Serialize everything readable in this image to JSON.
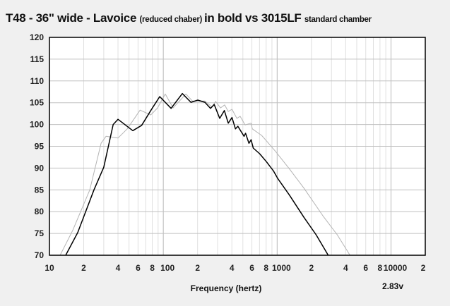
{
  "chart_data": {
    "type": "line",
    "title_parts": [
      {
        "text": "T48 - 36\" wide - Lavoice ",
        "size": "big"
      },
      {
        "text": "(reduced chaber) ",
        "size": "small"
      },
      {
        "text": "in bold vs 3015LF ",
        "size": "big"
      },
      {
        "text": "standard chamber",
        "size": "small"
      }
    ],
    "xlabel": "Frequency (hertz)",
    "annotation": "2.83v",
    "xscale": "log",
    "xlim": [
      10,
      20000
    ],
    "ylim": [
      70,
      120
    ],
    "grid": true,
    "y_ticks": [
      70,
      75,
      80,
      85,
      90,
      95,
      100,
      105,
      110,
      115,
      120
    ],
    "x_ticks": [
      {
        "value": 10,
        "label": "10"
      },
      {
        "value": 20,
        "label": "2"
      },
      {
        "value": 40,
        "label": "4"
      },
      {
        "value": 60,
        "label": "6"
      },
      {
        "value": 80,
        "label": "8"
      },
      {
        "value": 100,
        "label": "100"
      },
      {
        "value": 200,
        "label": "2"
      },
      {
        "value": 400,
        "label": "4"
      },
      {
        "value": 600,
        "label": "6"
      },
      {
        "value": 800,
        "label": "8"
      },
      {
        "value": 1000,
        "label": "1000"
      },
      {
        "value": 2000,
        "label": "2"
      },
      {
        "value": 4000,
        "label": "4"
      },
      {
        "value": 6000,
        "label": "6"
      },
      {
        "value": 8000,
        "label": "8"
      },
      {
        "value": 10000,
        "label": "10000"
      },
      {
        "value": 20000,
        "label": "2"
      }
    ],
    "series": [
      {
        "name": "3015LF standard chamber",
        "color": "#b4b4b4",
        "x": [
          12.4,
          16,
          22.6,
          28.4,
          31.4,
          40,
          48.2,
          62.5,
          77.6,
          89,
          104,
          122,
          158,
          180,
          232,
          268,
          288,
          318,
          346,
          372,
          401,
          443,
          473,
          523,
          590,
          605,
          730,
          808,
          970,
          1282,
          1717,
          2530,
          3370,
          4360
        ],
        "y": [
          70,
          75.7,
          85,
          95.7,
          97.3,
          96.9,
          99,
          103.3,
          102.2,
          103.8,
          107,
          103.8,
          107,
          105.4,
          105.4,
          104,
          105.3,
          103.8,
          104.5,
          103,
          103.5,
          101.4,
          101.9,
          99.9,
          100.3,
          99,
          97.5,
          96.2,
          93.8,
          89.8,
          85.4,
          79,
          74.7,
          70
        ]
      },
      {
        "name": "T48 Lavoice reduced chamber (bold)",
        "color": "#000000",
        "x": [
          13.9,
          17.7,
          24.6,
          30,
          36.3,
          40,
          54,
          64.5,
          77.6,
          93,
          117,
          147,
          175,
          201,
          232,
          260,
          280,
          313,
          344,
          372,
          401,
          430,
          452,
          512,
          528,
          565,
          590,
          617,
          701,
          808,
          931,
          1012,
          1282,
          1717,
          2200,
          2810
        ],
        "y": [
          70,
          75.2,
          85,
          90.2,
          100,
          101.2,
          98.6,
          99.8,
          103.2,
          106.4,
          103.7,
          107.1,
          105.1,
          105.6,
          105.1,
          103.7,
          104.6,
          101.4,
          103.2,
          100.3,
          101.6,
          99,
          99.6,
          97.3,
          98,
          95.7,
          96.5,
          94.6,
          93.3,
          91.4,
          89.3,
          87.6,
          83.8,
          78.7,
          74.7,
          70
        ]
      }
    ]
  }
}
